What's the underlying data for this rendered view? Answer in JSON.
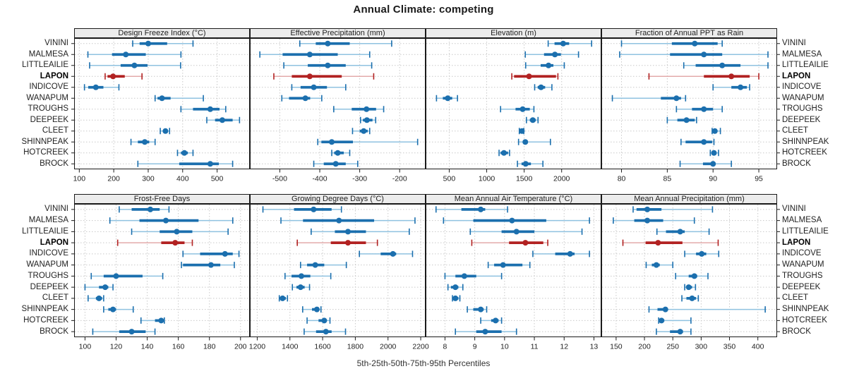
{
  "title": "Annual Climate: competing",
  "caption": "5th-25th-50th-75th-95th Percentiles",
  "sites": [
    "VININI",
    "MALMESA",
    "LITTLEAILIE",
    "LAPON",
    "INDICOVE",
    "WANAPUM",
    "TROUGHS",
    "DEEPEEK",
    "CLEET",
    "SHINNPEAK",
    "HOTCREEK",
    "BROCK"
  ],
  "highlighted_site": "LAPON",
  "percentiles": [
    5,
    25,
    50,
    75,
    95
  ],
  "colors": {
    "series": "#1b6fae",
    "series_light": "#8fc2e0",
    "highlight": "#b22222",
    "highlight_light": "#e3abab",
    "strip_bg": "#ececec",
    "grid": "#c9c9c9",
    "border": "#1a1a1a",
    "text": "#222222"
  },
  "chart_data": [
    {
      "type": "dotplot-percentiles",
      "title": "Design Freeze Index (°C)",
      "xlim": [
        85,
        595
      ],
      "xticks": [
        100,
        200,
        300,
        400,
        500
      ],
      "values": {
        "VININI": [
          255,
          275,
          300,
          355,
          430
        ],
        "MALMESA": [
          125,
          195,
          235,
          293,
          395
        ],
        "LITTLEAILIE": [
          130,
          220,
          260,
          298,
          394
        ],
        "LAPON": [
          175,
          182,
          198,
          232,
          282
        ],
        "INDICOVE": [
          115,
          126,
          148,
          170,
          215
        ],
        "WANAPUM": [
          320,
          327,
          340,
          365,
          460
        ],
        "TROUGHS": [
          395,
          430,
          480,
          507,
          525
        ],
        "DEEPEEK": [
          470,
          494,
          515,
          545,
          565
        ],
        "CLEET": [
          335,
          343,
          350,
          357,
          362
        ],
        "SHINNPEAK": [
          250,
          270,
          290,
          303,
          320
        ],
        "HOTCREEK": [
          385,
          395,
          405,
          415,
          430
        ],
        "BROCK": [
          270,
          390,
          480,
          505,
          545
        ]
      }
    },
    {
      "type": "dotplot-percentiles",
      "title": "Effective Precipitation (mm)",
      "xlim": [
        -575,
        -135
      ],
      "xticks": [
        -500,
        -400,
        -300,
        -200
      ],
      "values": {
        "VININI": [
          -450,
          -410,
          -380,
          -325,
          -220
        ],
        "MALMESA": [
          -550,
          -493,
          -425,
          -355,
          -275
        ],
        "LITTLEAILIE": [
          -490,
          -430,
          -380,
          -335,
          -270
        ],
        "LAPON": [
          -515,
          -470,
          -425,
          -345,
          -265
        ],
        "INDICOVE": [
          -470,
          -448,
          -415,
          -382,
          -335
        ],
        "WANAPUM": [
          -495,
          -477,
          -436,
          -424,
          -395
        ],
        "TROUGHS": [
          -365,
          -320,
          -283,
          -259,
          -240
        ],
        "DEEPEEK": [
          -298,
          -292,
          -282,
          -268,
          -260
        ],
        "CLEET": [
          -318,
          -300,
          -290,
          -280,
          -275
        ],
        "SHINNPEAK": [
          -405,
          -396,
          -370,
          -317,
          -155
        ],
        "HOTCREEK": [
          -370,
          -364,
          -355,
          -340,
          -325
        ],
        "BROCK": [
          -415,
          -390,
          -360,
          -335,
          -305
        ]
      }
    },
    {
      "type": "dotplot-percentiles",
      "title": "Elevation (m)",
      "xlim": [
        185,
        2530
      ],
      "xticks": [
        500,
        1000,
        1500,
        2000
      ],
      "values": {
        "VININI": [
          1820,
          1905,
          2020,
          2100,
          2400
        ],
        "MALMESA": [
          1515,
          1765,
          1910,
          1990,
          2225
        ],
        "LITTLEAILIE": [
          1520,
          1720,
          1825,
          1890,
          2035
        ],
        "LAPON": [
          1335,
          1365,
          1565,
          1925,
          1950
        ],
        "INDICOVE": [
          1640,
          1680,
          1725,
          1780,
          1870
        ],
        "WANAPUM": [
          330,
          415,
          480,
          540,
          610
        ],
        "TROUGHS": [
          1185,
          1385,
          1480,
          1575,
          1630
        ],
        "DEEPEEK": [
          1530,
          1575,
          1615,
          1655,
          1685
        ],
        "CLEET": [
          1435,
          1450,
          1470,
          1485,
          1495
        ],
        "SHINNPEAK": [
          1425,
          1480,
          1515,
          1550,
          1850
        ],
        "HOTCREEK": [
          1165,
          1185,
          1230,
          1285,
          1305
        ],
        "BROCK": [
          1410,
          1465,
          1520,
          1590,
          1750
        ]
      }
    },
    {
      "type": "dotplot-percentiles",
      "title": "Fraction of Annual PPT as Rain",
      "xlim": [
        77.8,
        97.0
      ],
      "xticks": [
        80,
        85,
        90,
        95
      ],
      "values": {
        "VININI": [
          80.0,
          85.5,
          88.0,
          90.5,
          91.0
        ],
        "MALMESA": [
          79.8,
          85.3,
          89.0,
          91.0,
          96.0
        ],
        "LITTLEAILIE": [
          86.8,
          88.1,
          91.0,
          93.0,
          96.0
        ],
        "LAPON": [
          83.0,
          89.0,
          92.0,
          94.0,
          95.0
        ],
        "INDICOVE": [
          90.0,
          92.0,
          93.0,
          93.7,
          94.0
        ],
        "WANAPUM": [
          79.0,
          84.3,
          86.0,
          86.5,
          87.0
        ],
        "TROUGHS": [
          86.0,
          87.7,
          89.0,
          90.0,
          91.0
        ],
        "DEEPEEK": [
          85.0,
          86.1,
          87.1,
          88.0,
          88.2
        ],
        "CLEET": [
          89.9,
          90.0,
          90.2,
          90.4,
          90.8
        ],
        "SHINNPEAK": [
          86.5,
          87.0,
          89.0,
          89.9,
          90.1
        ],
        "HOTCREEK": [
          89.7,
          89.9,
          90.1,
          90.3,
          90.6
        ],
        "BROCK": [
          86.4,
          88.9,
          90.0,
          90.2,
          92.0
        ]
      }
    },
    {
      "type": "dotplot-percentiles",
      "title": "Frost-Free Days",
      "xlim": [
        93,
        206
      ],
      "xticks": [
        100,
        120,
        140,
        160,
        180,
        200
      ],
      "values": {
        "VININI": [
          122,
          130,
          142,
          148,
          154
        ],
        "MALMESA": [
          116,
          135,
          152,
          173,
          195
        ],
        "LITTLEAILIE": [
          130,
          148,
          159,
          169,
          192
        ],
        "LAPON": [
          121,
          149,
          158,
          164,
          169
        ],
        "INDICOVE": [
          163,
          174,
          190,
          195,
          199
        ],
        "WANAPUM": [
          162,
          163,
          181,
          187,
          196
        ],
        "TROUGHS": [
          104,
          112,
          120,
          137,
          150
        ],
        "DEEPEEK": [
          100,
          109,
          113,
          115,
          118
        ],
        "CLEET": [
          102,
          107,
          109,
          111,
          112
        ],
        "SHINNPEAK": [
          112,
          115,
          118,
          120,
          131
        ],
        "HOTCREEK": [
          136,
          145,
          149,
          150,
          151
        ],
        "BROCK": [
          105,
          122,
          130,
          139,
          145
        ]
      }
    },
    {
      "type": "dotplot-percentiles",
      "title": "Growing Degree Days (°C)",
      "xlim": [
        1155,
        2230
      ],
      "xticks": [
        1200,
        1400,
        1600,
        1800,
        2000,
        2200
      ],
      "values": {
        "VININI": [
          1235,
          1425,
          1545,
          1655,
          1715
        ],
        "MALMESA": [
          1345,
          1480,
          1700,
          1915,
          2165
        ],
        "LITTLEAILIE": [
          1530,
          1675,
          1755,
          1865,
          2130
        ],
        "LAPON": [
          1445,
          1650,
          1755,
          1865,
          1935
        ],
        "INDICOVE": [
          1825,
          1955,
          2030,
          2050,
          2150
        ],
        "WANAPUM": [
          1465,
          1505,
          1555,
          1610,
          1745
        ],
        "TROUGHS": [
          1370,
          1410,
          1470,
          1525,
          1650
        ],
        "DEEPEEK": [
          1415,
          1440,
          1465,
          1490,
          1520
        ],
        "CLEET": [
          1335,
          1345,
          1355,
          1375,
          1385
        ],
        "SHINNPEAK": [
          1478,
          1535,
          1565,
          1580,
          1590
        ],
        "HOTCREEK": [
          1505,
          1575,
          1610,
          1625,
          1645
        ],
        "BROCK": [
          1487,
          1560,
          1620,
          1655,
          1740
        ]
      }
    },
    {
      "type": "dotplot-percentiles",
      "title": "Mean Annual Air Temperature (°C)",
      "xlim": [
        7.35,
        13.25
      ],
      "xticks": [
        8,
        9,
        10,
        11,
        12,
        13
      ],
      "values": {
        "VININI": [
          7.7,
          8.55,
          9.2,
          9.35,
          10.1
        ],
        "MALMESA": [
          7.95,
          8.95,
          10.25,
          11.4,
          12.85
        ],
        "LITTLEAILIE": [
          8.85,
          9.9,
          10.4,
          11.0,
          12.6
        ],
        "LAPON": [
          8.9,
          10.15,
          10.7,
          11.3,
          11.45
        ],
        "INDICOVE": [
          10.95,
          11.7,
          12.2,
          12.35,
          12.85
        ],
        "WANAPUM": [
          9.45,
          9.65,
          9.95,
          10.6,
          10.85
        ],
        "TROUGHS": [
          8.0,
          8.35,
          8.65,
          9.05,
          9.9
        ],
        "DEEPEEK": [
          8.1,
          8.2,
          8.35,
          8.45,
          8.6
        ],
        "CLEET": [
          8.25,
          8.3,
          8.35,
          8.45,
          8.5
        ],
        "SHINNPEAK": [
          8.75,
          8.95,
          9.2,
          9.3,
          9.4
        ],
        "HOTCREEK": [
          9.2,
          9.55,
          9.7,
          9.8,
          9.9
        ],
        "BROCK": [
          8.35,
          9.05,
          9.35,
          9.9,
          10.4
        ]
      }
    },
    {
      "type": "dotplot-percentiles",
      "title": "Mean Annual Precipitation (mm)",
      "xlim": [
        124,
        434
      ],
      "xticks": [
        150,
        200,
        250,
        300,
        350,
        400
      ],
      "values": {
        "VININI": [
          180,
          186,
          205,
          230,
          320
        ],
        "MALMESA": [
          145,
          182,
          205,
          233,
          288
        ],
        "LITTLEAILIE": [
          222,
          238,
          263,
          271,
          314
        ],
        "LAPON": [
          162,
          202,
          224,
          267,
          330
        ],
        "INDICOVE": [
          271,
          291,
          301,
          309,
          331
        ],
        "WANAPUM": [
          203,
          213,
          221,
          227,
          250
        ],
        "TROUGHS": [
          255,
          278,
          288,
          293,
          312
        ],
        "DEEPEEK": [
          271,
          274,
          278,
          284,
          290
        ],
        "CLEET": [
          266,
          274,
          284,
          291,
          295
        ],
        "SHINNPEAK": [
          208,
          223,
          237,
          240,
          413
        ],
        "HOTCREEK": [
          225,
          227,
          230,
          235,
          282
        ],
        "BROCK": [
          221,
          245,
          263,
          268,
          282
        ]
      }
    }
  ]
}
